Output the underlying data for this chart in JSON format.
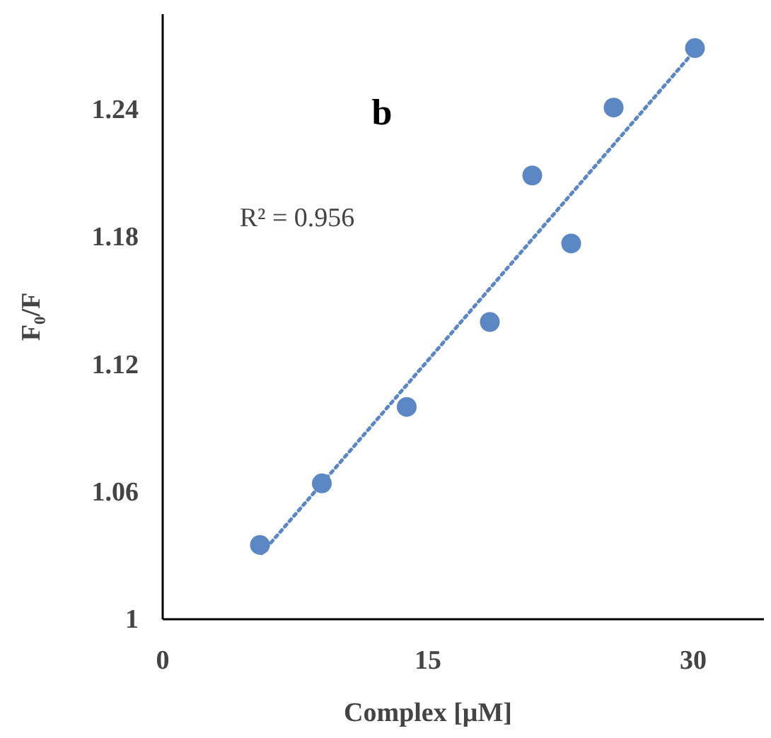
{
  "chart_data": {
    "type": "scatter",
    "xlabel": "Complex  [μM]",
    "ylabel": "F₀/F",
    "xlim": [
      0,
      34
    ],
    "ylim": [
      1,
      1.285
    ],
    "xticks": [
      0,
      15,
      30
    ],
    "yticks": [
      1,
      1.06,
      1.12,
      1.18,
      1.24
    ],
    "grid": false,
    "marker": "circle",
    "annotations": [
      "b",
      "R² = 0.956"
    ],
    "series": [
      {
        "color": "#5b87c5",
        "x": [
          5.5,
          9.0,
          13.8,
          18.5,
          20.9,
          23.1,
          25.5,
          30.1
        ],
        "values": [
          1.035,
          1.064,
          1.1,
          1.14,
          1.209,
          1.177,
          1.241,
          1.269
        ]
      },
      {
        "type": "line",
        "color": "#5b87c5",
        "line_style": "dotted",
        "marker": "none",
        "x": [
          5.6,
          30.1
        ],
        "values": [
          1.031,
          1.268
        ]
      }
    ]
  }
}
